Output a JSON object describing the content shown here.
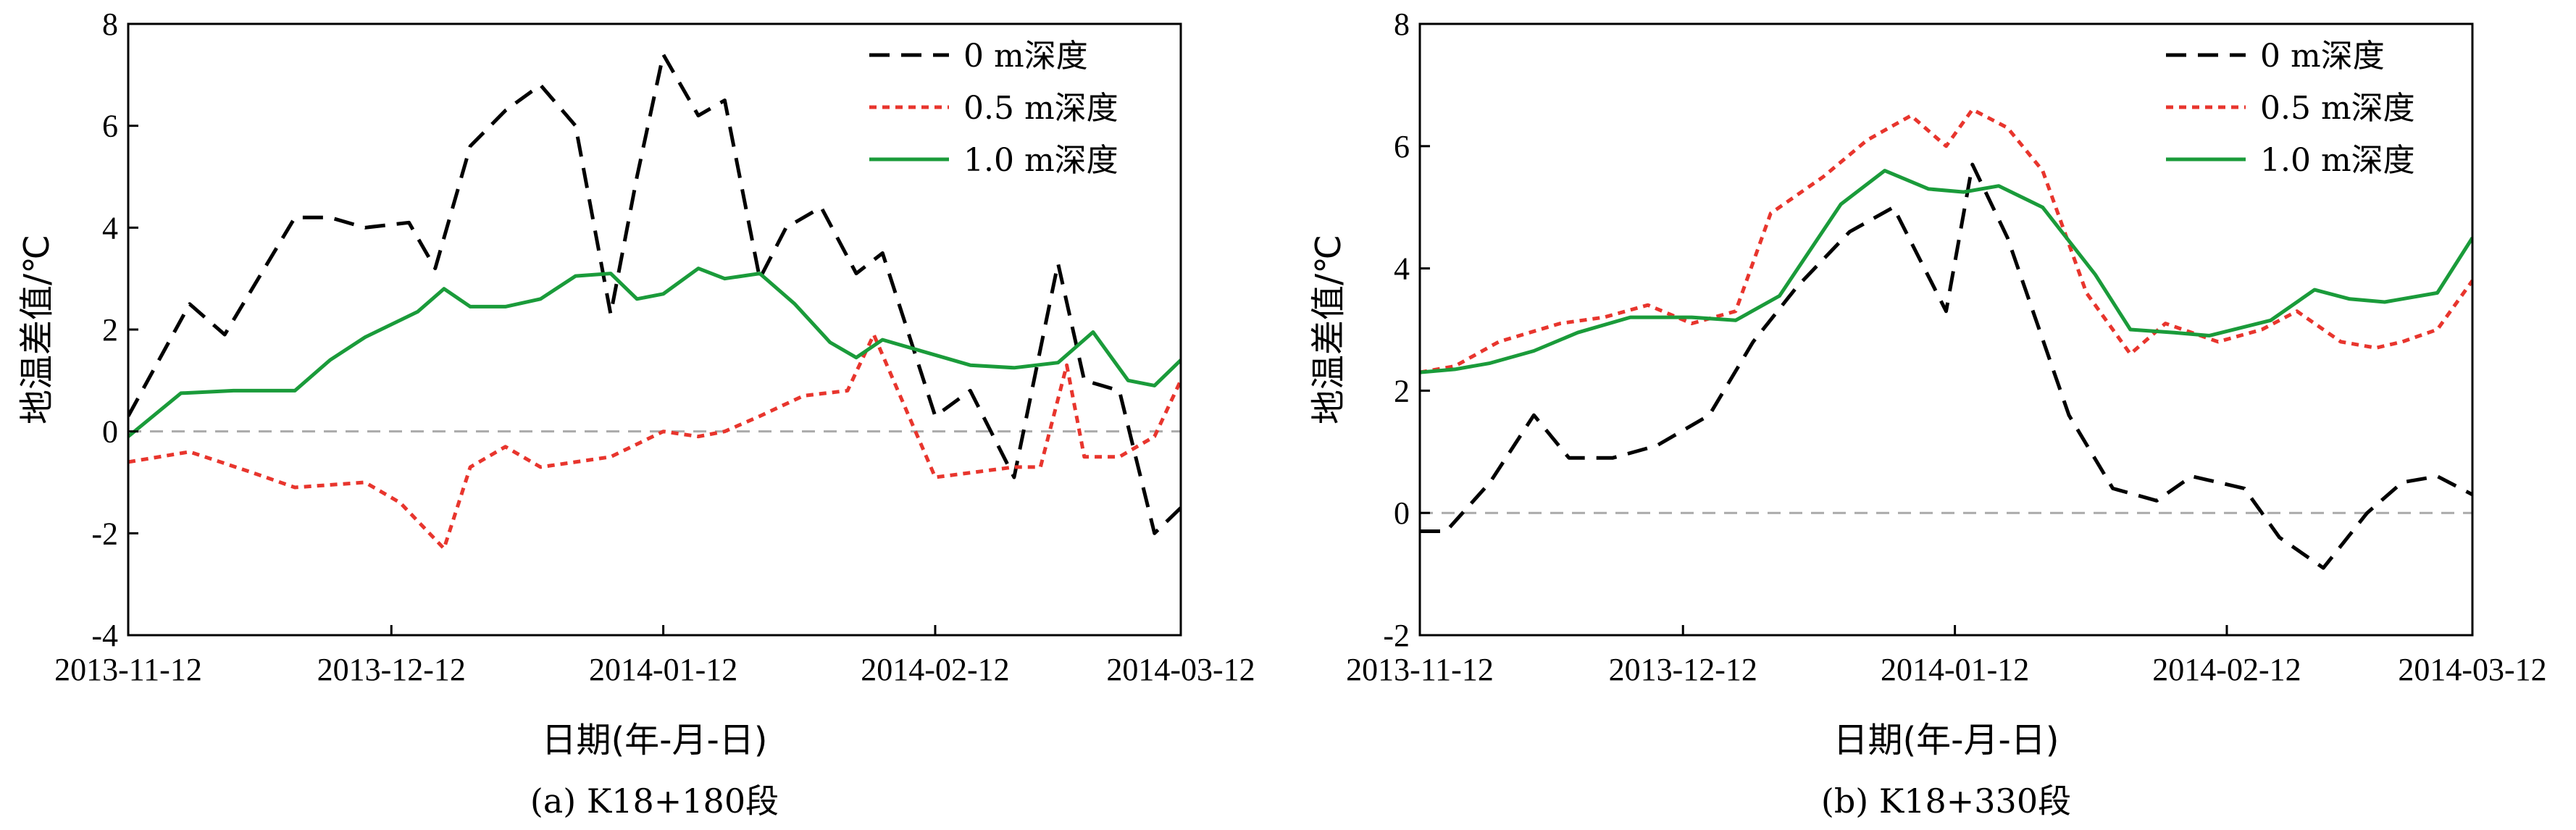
{
  "chart_data": [
    {
      "type": "line",
      "caption": "(a) K18+180段",
      "xlabel": "日期(年-月-日)",
      "ylabel": "地温差值/℃",
      "xlim": [
        "2013-11-12",
        "2014-03-12"
      ],
      "ylim": [
        -4,
        8
      ],
      "yticks": [
        -4,
        -2,
        0,
        2,
        4,
        6,
        8
      ],
      "xticks": [
        "2013-11-12",
        "2013-12-12",
        "2014-01-12",
        "2014-02-12",
        "2014-03-12"
      ],
      "legend_position": "top-right",
      "reference_line": 0,
      "series": [
        {
          "name": "0 m深度",
          "color": "#000000",
          "style": "dashed",
          "x": [
            "2013-11-12",
            "2013-11-19",
            "2013-11-23",
            "2013-12-01",
            "2013-12-05",
            "2013-12-09",
            "2013-12-14",
            "2013-12-17",
            "2013-12-21",
            "2013-12-25",
            "2013-12-29",
            "2014-01-02",
            "2014-01-06",
            "2014-01-09",
            "2014-01-12",
            "2014-01-16",
            "2014-01-19",
            "2014-01-23",
            "2014-01-26",
            "2014-01-30",
            "2014-02-03",
            "2014-02-06",
            "2014-02-12",
            "2014-02-16",
            "2014-02-21",
            "2014-02-26",
            "2014-03-01",
            "2014-03-05",
            "2014-03-09",
            "2014-03-12"
          ],
          "values": [
            0.3,
            2.5,
            1.9,
            4.2,
            4.2,
            4.0,
            4.1,
            3.2,
            5.6,
            6.3,
            6.8,
            6.0,
            2.3,
            5.0,
            7.4,
            6.2,
            6.5,
            3.0,
            4.0,
            4.4,
            3.1,
            3.5,
            0.3,
            0.8,
            -0.9,
            3.3,
            1.0,
            0.8,
            -2.0,
            -1.5
          ]
        },
        {
          "name": "0.5 m深度",
          "color": "#e8352d",
          "style": "dotted",
          "x": [
            "2013-11-12",
            "2013-11-19",
            "2013-11-26",
            "2013-12-01",
            "2013-12-09",
            "2013-12-13",
            "2013-12-18",
            "2013-12-21",
            "2013-12-25",
            "2013-12-29",
            "2014-01-02",
            "2014-01-06",
            "2014-01-12",
            "2014-01-16",
            "2014-01-19",
            "2014-01-23",
            "2014-01-28",
            "2014-02-02",
            "2014-02-05",
            "2014-02-12",
            "2014-02-21",
            "2014-02-24",
            "2014-02-27",
            "2014-03-01",
            "2014-03-05",
            "2014-03-09",
            "2014-03-12"
          ],
          "values": [
            -0.6,
            -0.4,
            -0.8,
            -1.1,
            -1.0,
            -1.4,
            -2.3,
            -0.7,
            -0.3,
            -0.7,
            -0.6,
            -0.5,
            0.0,
            -0.1,
            0.0,
            0.3,
            0.7,
            0.8,
            1.9,
            -0.9,
            -0.7,
            -0.7,
            1.3,
            -0.5,
            -0.5,
            -0.1,
            1.0
          ]
        },
        {
          "name": "1.0 m深度",
          "color": "#1a9b3a",
          "style": "solid",
          "x": [
            "2013-11-12",
            "2013-11-18",
            "2013-11-24",
            "2013-12-01",
            "2013-12-05",
            "2013-12-09",
            "2013-12-15",
            "2013-12-18",
            "2013-12-21",
            "2013-12-25",
            "2013-12-29",
            "2014-01-02",
            "2014-01-06",
            "2014-01-09",
            "2014-01-12",
            "2014-01-16",
            "2014-01-19",
            "2014-01-23",
            "2014-01-27",
            "2014-01-31",
            "2014-02-03",
            "2014-02-06",
            "2014-02-12",
            "2014-02-16",
            "2014-02-21",
            "2014-02-26",
            "2014-03-02",
            "2014-03-06",
            "2014-03-09",
            "2014-03-12"
          ],
          "values": [
            -0.1,
            0.75,
            0.8,
            0.8,
            1.4,
            1.85,
            2.35,
            2.8,
            2.45,
            2.45,
            2.6,
            3.05,
            3.1,
            2.6,
            2.7,
            3.2,
            3.0,
            3.1,
            2.5,
            1.75,
            1.45,
            1.8,
            1.5,
            1.3,
            1.25,
            1.35,
            1.95,
            1.0,
            0.9,
            1.4
          ]
        }
      ]
    },
    {
      "type": "line",
      "caption": "(b) K18+330段",
      "xlabel": "日期(年-月-日)",
      "ylabel": "地温差值/℃",
      "xlim": [
        "2013-11-12",
        "2014-03-12"
      ],
      "ylim": [
        -2,
        8
      ],
      "yticks": [
        -2,
        0,
        2,
        4,
        6,
        8
      ],
      "xticks": [
        "2013-11-12",
        "2013-12-12",
        "2014-01-12",
        "2014-02-12",
        "2014-03-12"
      ],
      "legend_position": "top-right",
      "reference_line": 0,
      "series": [
        {
          "name": "0 m深度",
          "color": "#000000",
          "style": "dashed",
          "x": [
            "2013-11-12",
            "2013-11-15",
            "2013-11-20",
            "2013-11-25",
            "2013-11-29",
            "2013-12-04",
            "2013-12-09",
            "2013-12-15",
            "2013-12-20",
            "2013-12-25",
            "2013-12-31",
            "2014-01-05",
            "2014-01-11",
            "2014-01-14",
            "2014-01-18",
            "2014-01-25",
            "2014-01-30",
            "2014-02-04",
            "2014-02-08",
            "2014-02-14",
            "2014-02-18",
            "2014-02-23",
            "2014-02-28",
            "2014-03-04",
            "2014-03-08",
            "2014-03-12"
          ],
          "values": [
            -0.3,
            -0.3,
            0.5,
            1.6,
            0.9,
            0.9,
            1.1,
            1.6,
            2.8,
            3.7,
            4.6,
            5.0,
            3.3,
            5.7,
            4.5,
            1.6,
            0.4,
            0.2,
            0.6,
            0.4,
            -0.4,
            -0.9,
            0.0,
            0.5,
            0.6,
            0.3
          ]
        },
        {
          "name": "0.5 m深度",
          "color": "#e8352d",
          "style": "dotted",
          "x": [
            "2013-11-12",
            "2013-11-16",
            "2013-11-21",
            "2013-11-28",
            "2013-12-03",
            "2013-12-08",
            "2013-12-13",
            "2013-12-18",
            "2013-12-22",
            "2013-12-28",
            "2014-01-02",
            "2014-01-07",
            "2014-01-11",
            "2014-01-14",
            "2014-01-18",
            "2014-01-22",
            "2014-01-27",
            "2014-02-01",
            "2014-02-05",
            "2014-02-11",
            "2014-02-16",
            "2014-02-20",
            "2014-02-25",
            "2014-02-29",
            "2014-03-04",
            "2014-03-08",
            "2014-03-12"
          ],
          "values": [
            2.3,
            2.4,
            2.8,
            3.1,
            3.2,
            3.4,
            3.1,
            3.3,
            4.9,
            5.5,
            6.1,
            6.5,
            6.0,
            6.6,
            6.3,
            5.6,
            3.6,
            2.6,
            3.1,
            2.8,
            3.0,
            3.3,
            2.8,
            2.7,
            2.8,
            3.0,
            3.8
          ]
        },
        {
          "name": "1.0 m深度",
          "color": "#1a9b3a",
          "style": "solid",
          "x": [
            "2013-11-12",
            "2013-11-16",
            "2013-11-20",
            "2013-11-25",
            "2013-11-30",
            "2013-12-06",
            "2013-12-13",
            "2013-12-18",
            "2013-12-23",
            "2013-12-30",
            "2014-01-04",
            "2014-01-09",
            "2014-01-13",
            "2014-01-17",
            "2014-01-22",
            "2014-01-28",
            "2014-02-01",
            "2014-02-06",
            "2014-02-10",
            "2014-02-17",
            "2014-02-22",
            "2014-02-26",
            "2014-03-02",
            "2014-03-08",
            "2014-03-12"
          ],
          "values": [
            2.3,
            2.35,
            2.45,
            2.65,
            2.95,
            3.2,
            3.2,
            3.15,
            3.55,
            5.05,
            5.6,
            5.3,
            5.25,
            5.35,
            5.0,
            3.9,
            3.0,
            2.95,
            2.9,
            3.15,
            3.65,
            3.5,
            3.45,
            3.6,
            4.5
          ]
        }
      ]
    }
  ]
}
